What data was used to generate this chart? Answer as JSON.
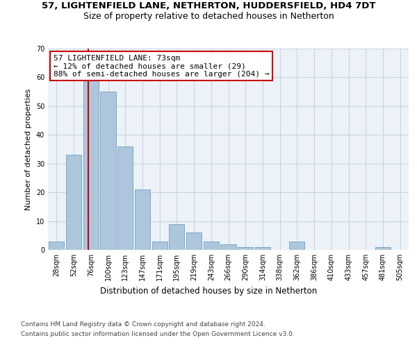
{
  "title1": "57, LIGHTENFIELD LANE, NETHERTON, HUDDERSFIELD, HD4 7DT",
  "title2": "Size of property relative to detached houses in Netherton",
  "xlabel": "Distribution of detached houses by size in Netherton",
  "ylabel": "Number of detached properties",
  "categories": [
    "28sqm",
    "52sqm",
    "76sqm",
    "100sqm",
    "123sqm",
    "147sqm",
    "171sqm",
    "195sqm",
    "219sqm",
    "243sqm",
    "266sqm",
    "290sqm",
    "314sqm",
    "338sqm",
    "362sqm",
    "386sqm",
    "410sqm",
    "433sqm",
    "457sqm",
    "481sqm",
    "505sqm"
  ],
  "values": [
    3,
    33,
    59,
    55,
    36,
    21,
    3,
    9,
    6,
    3,
    2,
    1,
    1,
    0,
    3,
    0,
    0,
    0,
    0,
    1,
    0
  ],
  "bar_color": "#aec6dc",
  "bar_edge_color": "#7aaac8",
  "grid_color": "#c8d4e4",
  "background_color": "#edf2f8",
  "ylim": [
    0,
    70
  ],
  "yticks": [
    0,
    10,
    20,
    30,
    40,
    50,
    60,
    70
  ],
  "vline_color": "#cc0000",
  "annotation_text": "57 LIGHTENFIELD LANE: 73sqm\n← 12% of detached houses are smaller (29)\n88% of semi-detached houses are larger (204) →",
  "annotation_box_color": "#ffffff",
  "annotation_border_color": "#cc0000",
  "footer1": "Contains HM Land Registry data © Crown copyright and database right 2024.",
  "footer2": "Contains public sector information licensed under the Open Government Licence v3.0.",
  "title1_fontsize": 9.5,
  "title2_fontsize": 9,
  "xlabel_fontsize": 8.5,
  "ylabel_fontsize": 8,
  "tick_fontsize": 7,
  "annotation_fontsize": 8,
  "footer_fontsize": 6.5
}
